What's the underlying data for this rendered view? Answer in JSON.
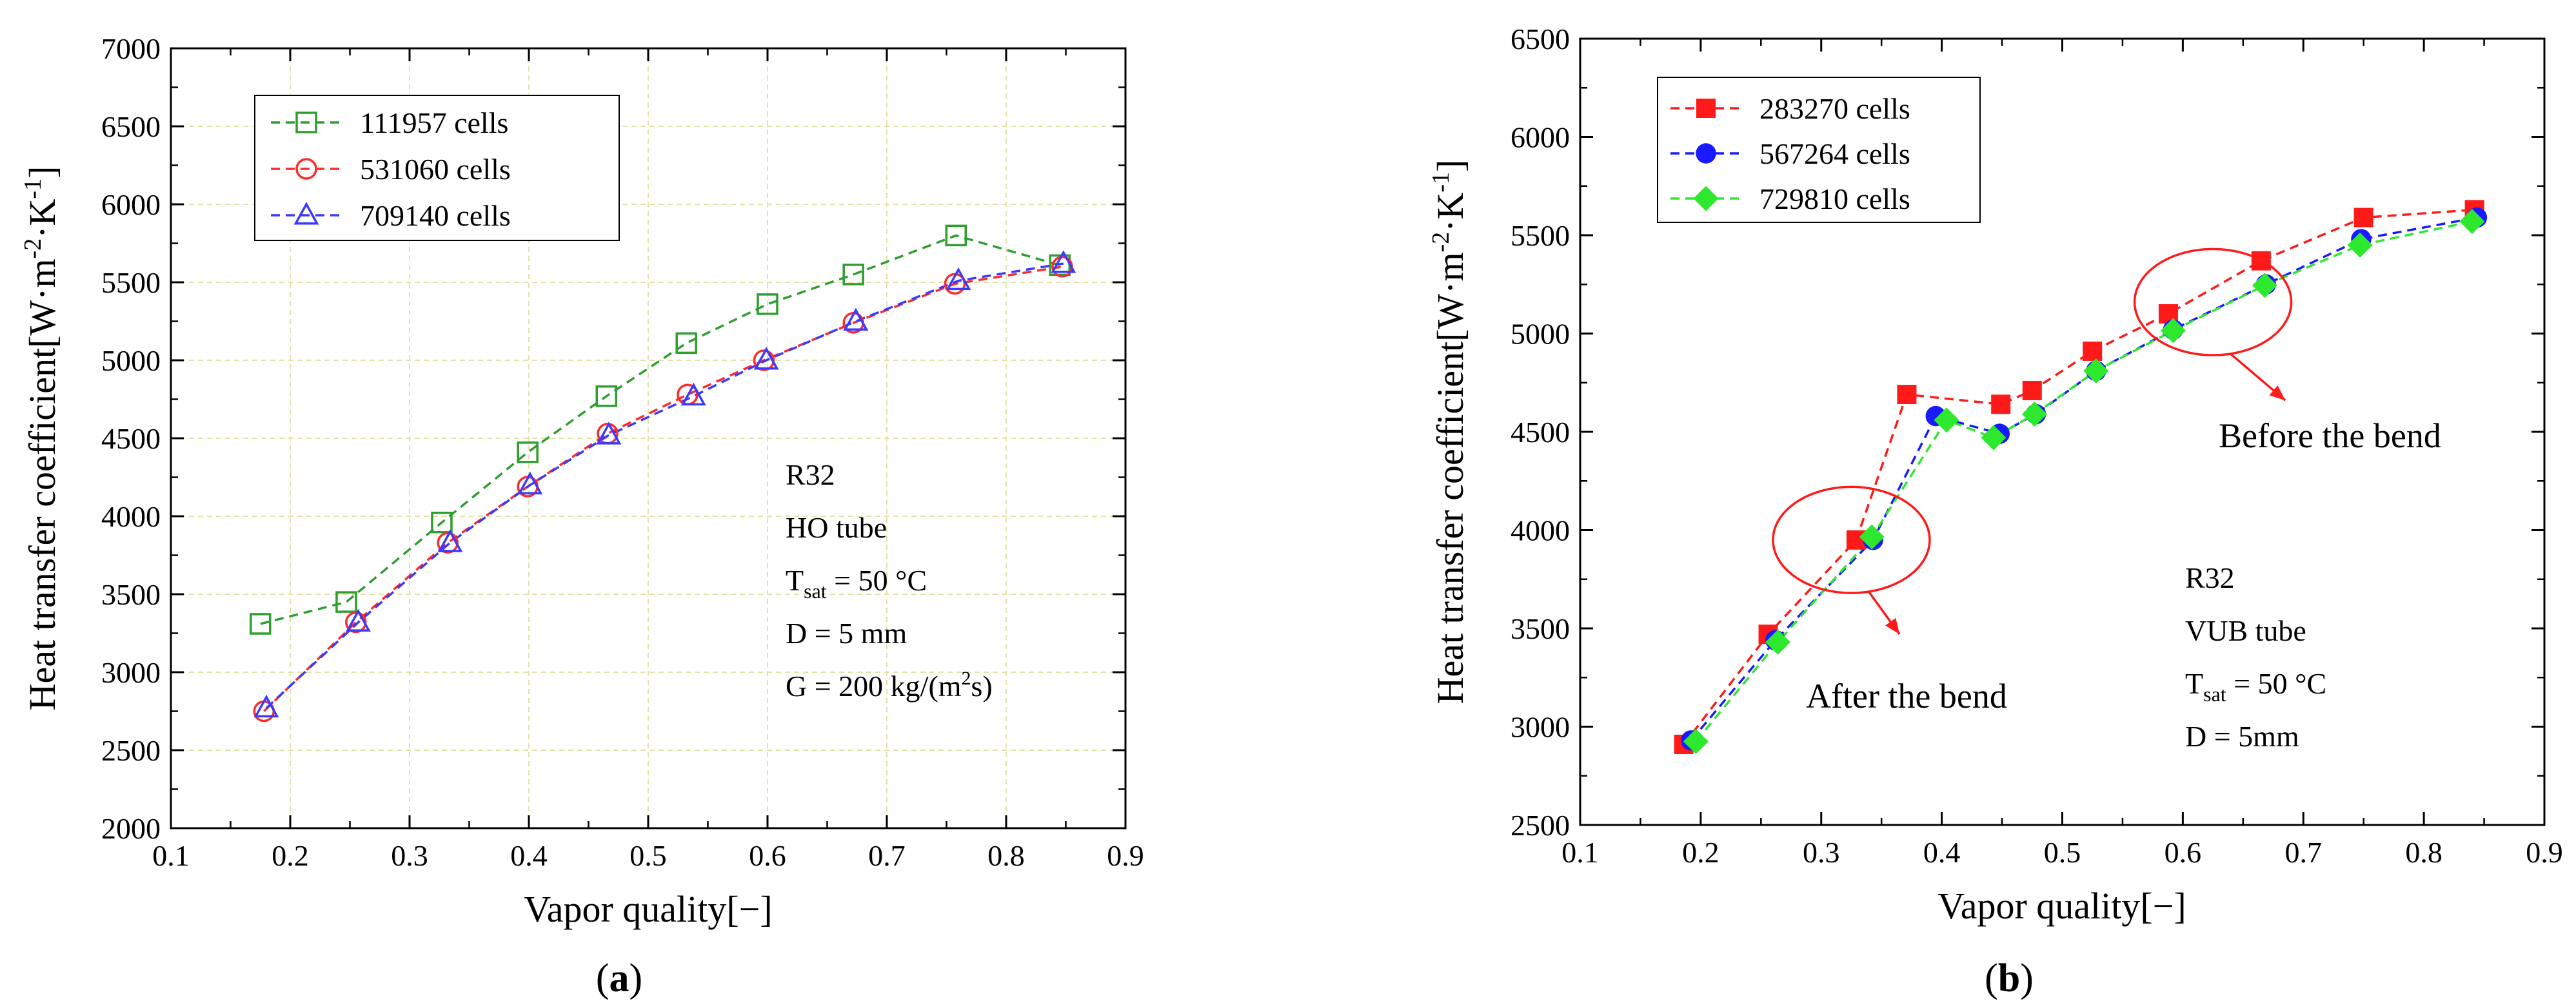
{
  "figure": {
    "panels": [
      {
        "label_open": "(",
        "label_letter": "a",
        "label_close": ")"
      },
      {
        "label_open": "(",
        "label_letter": "b",
        "label_close": ")"
      }
    ]
  },
  "chart_data": [
    {
      "type": "line",
      "title": "",
      "xlabel": "Vapor quality[−]",
      "ylabel_main": "Heat transfer coefficient[W·m",
      "ylabel_sup1": "-2",
      "ylabel_mid": "·K",
      "ylabel_sup2": "-1",
      "ylabel_end": "]",
      "xlim": [
        0.1,
        0.9
      ],
      "ylim": [
        2000,
        7000
      ],
      "xticks": [
        0.1,
        0.2,
        0.3,
        0.4,
        0.5,
        0.6,
        0.7,
        0.8,
        0.9
      ],
      "xtick_labels": [
        "0.1",
        "0.2",
        "0.3",
        "0.4",
        "0.5",
        "0.6",
        "0.7",
        "0.8",
        "0.9"
      ],
      "yticks": [
        2000,
        2500,
        3000,
        3500,
        4000,
        4500,
        5000,
        5500,
        6000,
        6500,
        7000
      ],
      "ytick_labels": [
        "2000",
        "2500",
        "3000",
        "3500",
        "4000",
        "4500",
        "5000",
        "5500",
        "6000",
        "6500",
        "7000"
      ],
      "grid": true,
      "legend_position": "top-left",
      "series": [
        {
          "name": "111957 cells",
          "color": "#2e9e2e",
          "marker": "square-open",
          "x": [
            0.175,
            0.247,
            0.327,
            0.399,
            0.465,
            0.532,
            0.6,
            0.672,
            0.758,
            0.845
          ],
          "y": [
            3310,
            3450,
            3960,
            4410,
            4770,
            5110,
            5360,
            5550,
            5800,
            5610
          ]
        },
        {
          "name": "531060 cells",
          "color": "#ff2a2a",
          "marker": "circle-open",
          "x": [
            0.178,
            0.255,
            0.332,
            0.399,
            0.466,
            0.533,
            0.597,
            0.672,
            0.757,
            0.847
          ],
          "y": [
            2750,
            3320,
            3830,
            4190,
            4530,
            4780,
            5000,
            5240,
            5490,
            5600
          ]
        },
        {
          "name": "709140 cells",
          "color": "#3a3aff",
          "marker": "triangle-open",
          "x": [
            0.18,
            0.257,
            0.334,
            0.401,
            0.467,
            0.538,
            0.599,
            0.674,
            0.76,
            0.848
          ],
          "y": [
            2770,
            3320,
            3830,
            4200,
            4520,
            4770,
            5000,
            5250,
            5510,
            5620
          ]
        }
      ],
      "annotation_lines": [
        {
          "main": "R32",
          "sub": "",
          "tail": ""
        },
        {
          "main": "HO tube",
          "sub": "",
          "tail": ""
        },
        {
          "main": "T",
          "sub": "sat",
          "tail": " = 50 °C"
        },
        {
          "main": "D = 5 mm",
          "sub": "",
          "tail": ""
        },
        {
          "main": "G = 200 kg/(m",
          "sup": "2",
          "tail": "s)"
        }
      ]
    },
    {
      "type": "line",
      "title": "",
      "xlabel": "Vapor quality[−]",
      "ylabel_main": "Heat transfer coefficient[W·m",
      "ylabel_sup1": "-2",
      "ylabel_mid": "·K",
      "ylabel_sup2": "-1",
      "ylabel_end": "]",
      "xlim": [
        0.1,
        0.9
      ],
      "ylim": [
        2500,
        6500
      ],
      "xticks": [
        0.1,
        0.2,
        0.3,
        0.4,
        0.5,
        0.6,
        0.7,
        0.8,
        0.9
      ],
      "xtick_labels": [
        "0.1",
        "0.2",
        "0.3",
        "0.4",
        "0.5",
        "0.6",
        "0.7",
        "0.8",
        "0.9"
      ],
      "yticks": [
        2500,
        3000,
        3500,
        4000,
        4500,
        5000,
        5500,
        6000,
        6500
      ],
      "ytick_labels": [
        "2500",
        "3000",
        "3500",
        "4000",
        "4500",
        "5000",
        "5500",
        "6000",
        "6500"
      ],
      "grid": false,
      "legend_position": "top-left",
      "series": [
        {
          "name": "283270 cells",
          "color": "#ff1a1a",
          "marker": "square-filled",
          "x": [
            0.186,
            0.256,
            0.329,
            0.371,
            0.449,
            0.475,
            0.525,
            0.588,
            0.665,
            0.75,
            0.842
          ],
          "y": [
            2910,
            3470,
            3950,
            4690,
            4640,
            4710,
            4910,
            5100,
            5370,
            5590,
            5630
          ]
        },
        {
          "name": "567264 cells",
          "color": "#1a1aff",
          "marker": "circle-filled",
          "x": [
            0.192,
            0.262,
            0.343,
            0.395,
            0.448,
            0.478,
            0.528,
            0.592,
            0.669,
            0.748,
            0.844
          ],
          "y": [
            2930,
            3440,
            3950,
            4580,
            4490,
            4590,
            4810,
            5020,
            5250,
            5480,
            5590
          ]
        },
        {
          "name": "729810 cells",
          "color": "#2ee82e",
          "marker": "diamond-filled",
          "x": [
            0.196,
            0.264,
            0.342,
            0.404,
            0.443,
            0.477,
            0.528,
            0.592,
            0.668,
            0.747,
            0.84
          ],
          "y": [
            2925,
            3430,
            3965,
            4560,
            4470,
            4590,
            4810,
            5015,
            5245,
            5450,
            5570
          ]
        }
      ],
      "highlights": [
        {
          "label": "After the bend",
          "cx": 0.325,
          "cy": 3950,
          "rx": 0.065,
          "ry": 270,
          "tip_x": 0.365,
          "tip_y": 3470
        },
        {
          "label": "Before the bend",
          "cx": 0.625,
          "cy": 5160,
          "rx": 0.065,
          "ry": 270,
          "tip_x": 0.685,
          "tip_y": 4660
        }
      ],
      "annotation_lines": [
        {
          "main": "R32",
          "sub": "",
          "tail": ""
        },
        {
          "main": "VUB tube",
          "sub": "",
          "tail": ""
        },
        {
          "main": "T",
          "sub": "sat",
          "tail": " = 50 °C"
        },
        {
          "main": "D = 5mm",
          "sub": "",
          "tail": ""
        }
      ]
    }
  ]
}
